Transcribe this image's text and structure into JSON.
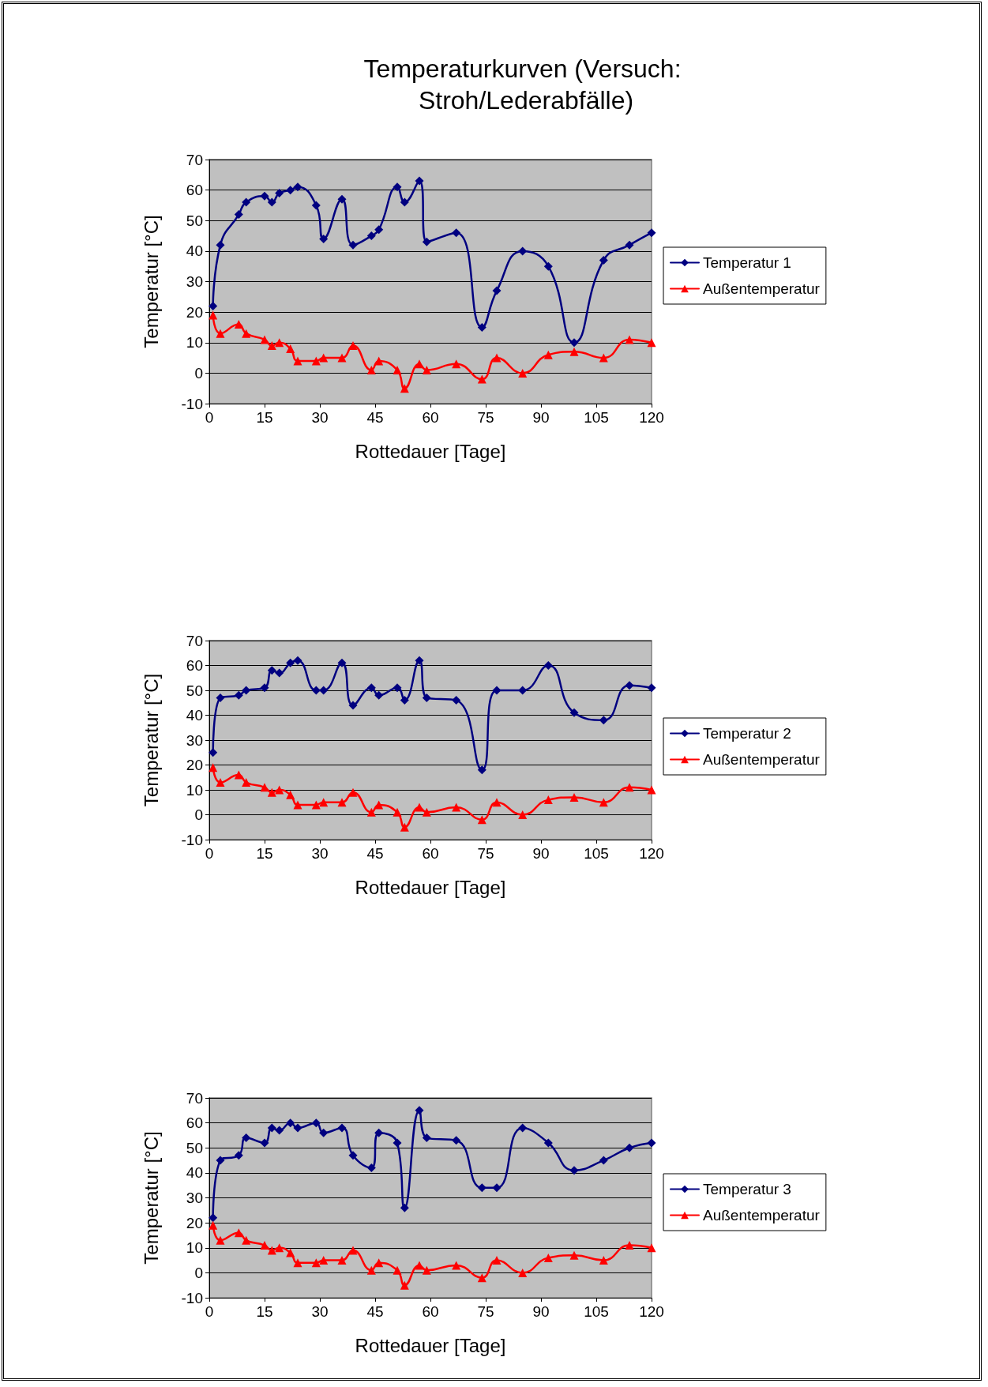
{
  "chart_data": [
    {
      "type": "line",
      "title": "Temperaturkurven (Versuch: Stroh/Lederabfälle)",
      "xlabel": "Rottedauer [Tage]",
      "ylabel": "Temperatur [°C]",
      "x": [
        1,
        3,
        8,
        10,
        15,
        17,
        19,
        22,
        24,
        29,
        31,
        36,
        39,
        44,
        46,
        51,
        53,
        57,
        59,
        67,
        74,
        78,
        85,
        92,
        99,
        107,
        114,
        120
      ],
      "series": [
        {
          "name": "Temperatur 1",
          "color": "#000080",
          "marker": "diamond",
          "values": [
            22,
            42,
            52,
            56,
            58,
            56,
            59,
            60,
            61,
            55,
            44,
            57,
            42,
            45,
            47,
            61,
            56,
            63,
            43,
            46,
            15,
            27,
            40,
            35,
            10,
            37,
            42,
            46
          ]
        },
        {
          "name": "Außentemperatur",
          "color": "#ff0000",
          "marker": "triangle",
          "values": [
            19,
            13,
            16,
            13,
            11,
            9,
            10,
            8,
            4,
            4,
            5,
            5,
            9,
            1,
            4,
            1,
            -5,
            3,
            1,
            3,
            -2,
            5,
            0,
            6,
            7,
            5,
            11,
            10
          ]
        }
      ],
      "xlim": [
        0,
        120
      ],
      "xticks": [
        0,
        15,
        30,
        45,
        60,
        75,
        90,
        105,
        120
      ],
      "ylim": [
        -10,
        70
      ],
      "yticks": [
        -10,
        0,
        10,
        20,
        30,
        40,
        50,
        60,
        70
      ],
      "grid": "y",
      "legend": "right",
      "line_style": "solid"
    },
    {
      "type": "line",
      "xlabel": "Rottedauer [Tage]",
      "ylabel": "Temperatur [°C]",
      "x": [
        1,
        3,
        8,
        10,
        15,
        17,
        19,
        22,
        24,
        29,
        31,
        36,
        39,
        44,
        46,
        51,
        53,
        57,
        59,
        67,
        74,
        78,
        85,
        92,
        99,
        107,
        114,
        120
      ],
      "series": [
        {
          "name": "Temperatur 2",
          "color": "#000080",
          "marker": "diamond",
          "values": [
            25,
            47,
            48,
            50,
            51,
            58,
            57,
            61,
            62,
            50,
            50,
            61,
            44,
            51,
            48,
            51,
            46,
            62,
            47,
            46,
            18,
            50,
            50,
            60,
            41,
            38,
            52,
            51
          ]
        },
        {
          "name": "Außentemperatur",
          "color": "#ff0000",
          "marker": "triangle",
          "values": [
            19,
            13,
            16,
            13,
            11,
            9,
            10,
            8,
            4,
            4,
            5,
            5,
            9,
            1,
            4,
            1,
            -5,
            3,
            1,
            3,
            -2,
            5,
            0,
            6,
            7,
            5,
            11,
            10
          ]
        }
      ],
      "xlim": [
        0,
        120
      ],
      "xticks": [
        0,
        15,
        30,
        45,
        60,
        75,
        90,
        105,
        120
      ],
      "ylim": [
        -10,
        70
      ],
      "yticks": [
        -10,
        0,
        10,
        20,
        30,
        40,
        50,
        60,
        70
      ],
      "grid": "y",
      "legend": "right",
      "line_style": "solid"
    },
    {
      "type": "line",
      "xlabel": "Rottedauer [Tage]",
      "ylabel": "Temperatur [°C]",
      "x": [
        1,
        3,
        8,
        10,
        15,
        17,
        19,
        22,
        24,
        29,
        31,
        36,
        39,
        44,
        46,
        51,
        53,
        57,
        59,
        67,
        74,
        78,
        85,
        92,
        99,
        107,
        114,
        120
      ],
      "series": [
        {
          "name": "Temperatur 3",
          "color": "#000080",
          "marker": "diamond",
          "values": [
            22,
            45,
            47,
            54,
            52,
            58,
            57,
            60,
            58,
            60,
            56,
            58,
            47,
            42,
            56,
            52,
            26,
            65,
            54,
            53,
            34,
            34,
            58,
            52,
            41,
            45,
            50,
            52
          ]
        },
        {
          "name": "Außentemperatur",
          "color": "#ff0000",
          "marker": "triangle",
          "values": [
            19,
            13,
            16,
            13,
            11,
            9,
            10,
            8,
            4,
            4,
            5,
            5,
            9,
            1,
            4,
            1,
            -5,
            3,
            1,
            3,
            -2,
            5,
            0,
            6,
            7,
            5,
            11,
            10
          ]
        }
      ],
      "xlim": [
        0,
        120
      ],
      "xticks": [
        0,
        15,
        30,
        45,
        60,
        75,
        90,
        105,
        120
      ],
      "ylim": [
        -10,
        70
      ],
      "yticks": [
        -10,
        0,
        10,
        20,
        30,
        40,
        50,
        60,
        70
      ],
      "grid": "y",
      "legend": "right",
      "line_style": "solid"
    }
  ]
}
